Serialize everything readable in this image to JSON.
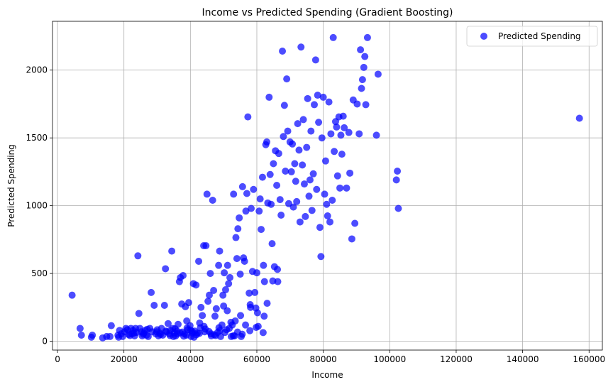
{
  "chart_data": {
    "type": "scatter",
    "title": "Income vs Predicted Spending (Gradient Boosting)",
    "xlabel": "Income",
    "ylabel": "Predicted Spending",
    "xlim": [
      -1500,
      164000
    ],
    "ylim": [
      -65,
      2360
    ],
    "xticks": [
      0,
      20000,
      40000,
      60000,
      80000,
      100000,
      120000,
      140000,
      160000
    ],
    "yticks": [
      0,
      500,
      1000,
      1500,
      2000
    ],
    "grid": true,
    "legend": {
      "placement": "top-right",
      "label": "Predicted Spending"
    },
    "marker_color": "#0000ff",
    "marker_alpha": 0.7,
    "series": [
      {
        "name": "Predicted Spending",
        "points": [
          [
            4400,
            340
          ],
          [
            6800,
            95
          ],
          [
            7200,
            45
          ],
          [
            10200,
            30
          ],
          [
            10500,
            45
          ],
          [
            13600,
            25
          ],
          [
            14800,
            35
          ],
          [
            15800,
            35
          ],
          [
            16200,
            115
          ],
          [
            18200,
            45
          ],
          [
            18400,
            30
          ],
          [
            18700,
            80
          ],
          [
            19200,
            55
          ],
          [
            19600,
            35
          ],
          [
            20200,
            70
          ],
          [
            20600,
            95
          ],
          [
            21000,
            85
          ],
          [
            21400,
            50
          ],
          [
            22100,
            95
          ],
          [
            22400,
            55
          ],
          [
            22800,
            80
          ],
          [
            23200,
            40
          ],
          [
            23500,
            95
          ],
          [
            23800,
            65
          ],
          [
            24200,
            630
          ],
          [
            24500,
            205
          ],
          [
            24800,
            95
          ],
          [
            25200,
            70
          ],
          [
            25500,
            40
          ],
          [
            26000,
            60
          ],
          [
            26400,
            80
          ],
          [
            26800,
            45
          ],
          [
            27300,
            35
          ],
          [
            27800,
            95
          ],
          [
            28200,
            360
          ],
          [
            28500,
            70
          ],
          [
            29100,
            265
          ],
          [
            29600,
            55
          ],
          [
            30000,
            85
          ],
          [
            30400,
            40
          ],
          [
            30800,
            60
          ],
          [
            31300,
            95
          ],
          [
            31700,
            45
          ],
          [
            32200,
            265
          ],
          [
            32500,
            535
          ],
          [
            32800,
            70
          ],
          [
            33300,
            130
          ],
          [
            33700,
            55
          ],
          [
            34000,
            80
          ],
          [
            34400,
            665
          ],
          [
            34700,
            95
          ],
          [
            35200,
            60
          ],
          [
            35600,
            40
          ],
          [
            36000,
            75
          ],
          [
            36300,
            125
          ],
          [
            36700,
            440
          ],
          [
            37000,
            470
          ],
          [
            37400,
            275
          ],
          [
            37800,
            485
          ],
          [
            38200,
            55
          ],
          [
            38500,
            255
          ],
          [
            38900,
            150
          ],
          [
            39200,
            85
          ],
          [
            39500,
            285
          ],
          [
            39900,
            115
          ],
          [
            40200,
            35
          ],
          [
            40600,
            60
          ],
          [
            40900,
            425
          ],
          [
            41300,
            75
          ],
          [
            41700,
            415
          ],
          [
            42100,
            60
          ],
          [
            42500,
            590
          ],
          [
            42800,
            135
          ],
          [
            43200,
            250
          ],
          [
            43600,
            190
          ],
          [
            44000,
            705
          ],
          [
            44300,
            70
          ],
          [
            44700,
            705
          ],
          [
            45000,
            1085
          ],
          [
            45300,
            295
          ],
          [
            45700,
            340
          ],
          [
            46000,
            500
          ],
          [
            46300,
            40
          ],
          [
            46700,
            1040
          ],
          [
            47000,
            375
          ],
          [
            47400,
            185
          ],
          [
            47800,
            240
          ],
          [
            48200,
            65
          ],
          [
            48500,
            560
          ],
          [
            48800,
            665
          ],
          [
            49100,
            35
          ],
          [
            49500,
            120
          ],
          [
            49800,
            340
          ],
          [
            50200,
            505
          ],
          [
            50600,
            380
          ],
          [
            50900,
            85
          ],
          [
            51200,
            560
          ],
          [
            51500,
            425
          ],
          [
            51900,
            470
          ],
          [
            52200,
            140
          ],
          [
            52600,
            120
          ],
          [
            53000,
            1085
          ],
          [
            53300,
            40
          ],
          [
            53700,
            765
          ],
          [
            54000,
            610
          ],
          [
            54300,
            830
          ],
          [
            54700,
            910
          ],
          [
            55000,
            495
          ],
          [
            55300,
            35
          ],
          [
            55700,
            1140
          ],
          [
            56000,
            615
          ],
          [
            56300,
            590
          ],
          [
            56700,
            960
          ],
          [
            57000,
            1090
          ],
          [
            57300,
            1655
          ],
          [
            57700,
            355
          ],
          [
            58000,
            270
          ],
          [
            58300,
            980
          ],
          [
            58700,
            515
          ],
          [
            59000,
            1120
          ],
          [
            59400,
            360
          ],
          [
            59700,
            245
          ],
          [
            60000,
            505
          ],
          [
            60400,
            110
          ],
          [
            60700,
            960
          ],
          [
            61000,
            1050
          ],
          [
            61300,
            825
          ],
          [
            61700,
            1210
          ],
          [
            62000,
            560
          ],
          [
            62300,
            440
          ],
          [
            62700,
            1450
          ],
          [
            63000,
            1470
          ],
          [
            63300,
            1020
          ],
          [
            63700,
            1800
          ],
          [
            64000,
            1230
          ],
          [
            64300,
            1010
          ],
          [
            64600,
            720
          ],
          [
            65000,
            1310
          ],
          [
            65300,
            550
          ],
          [
            65600,
            1405
          ],
          [
            66000,
            1150
          ],
          [
            66300,
            440
          ],
          [
            66600,
            1385
          ],
          [
            67000,
            1045
          ],
          [
            67300,
            930
          ],
          [
            67700,
            2140
          ],
          [
            68000,
            1510
          ],
          [
            68300,
            1740
          ],
          [
            68600,
            1255
          ],
          [
            69000,
            1935
          ],
          [
            69300,
            1550
          ],
          [
            69600,
            1015
          ],
          [
            70000,
            1470
          ],
          [
            70400,
            1250
          ],
          [
            70700,
            1455
          ],
          [
            71000,
            990
          ],
          [
            71400,
            1310
          ],
          [
            71700,
            1180
          ],
          [
            72000,
            1030
          ],
          [
            72300,
            1605
          ],
          [
            72700,
            1410
          ],
          [
            73000,
            880
          ],
          [
            73300,
            2170
          ],
          [
            73700,
            1300
          ],
          [
            74000,
            1635
          ],
          [
            74300,
            1160
          ],
          [
            74600,
            920
          ],
          [
            75000,
            1430
          ],
          [
            75300,
            1790
          ],
          [
            75700,
            1070
          ],
          [
            76000,
            1190
          ],
          [
            76300,
            1550
          ],
          [
            76600,
            965
          ],
          [
            77000,
            1235
          ],
          [
            77300,
            1745
          ],
          [
            77700,
            2075
          ],
          [
            78000,
            1120
          ],
          [
            78300,
            1815
          ],
          [
            78600,
            1615
          ],
          [
            79000,
            840
          ],
          [
            79300,
            625
          ],
          [
            79600,
            1500
          ],
          [
            80000,
            1800
          ],
          [
            80400,
            1085
          ],
          [
            80700,
            1330
          ],
          [
            81000,
            1010
          ],
          [
            81300,
            925
          ],
          [
            81700,
            1765
          ],
          [
            82000,
            880
          ],
          [
            82300,
            1530
          ],
          [
            82700,
            1040
          ],
          [
            83000,
            2240
          ],
          [
            83300,
            1400
          ],
          [
            83700,
            1620
          ],
          [
            84000,
            1580
          ],
          [
            84300,
            1220
          ],
          [
            84700,
            1655
          ],
          [
            85000,
            1130
          ],
          [
            85300,
            1520
          ],
          [
            85600,
            1380
          ],
          [
            86000,
            1660
          ],
          [
            86300,
            1575
          ],
          [
            87000,
            1130
          ],
          [
            87700,
            1540
          ],
          [
            88000,
            1240
          ],
          [
            88600,
            755
          ],
          [
            89000,
            1780
          ],
          [
            89500,
            870
          ],
          [
            90200,
            1750
          ],
          [
            90800,
            1530
          ],
          [
            91200,
            2150
          ],
          [
            91500,
            1865
          ],
          [
            91800,
            1930
          ],
          [
            92200,
            2020
          ],
          [
            92500,
            2100
          ],
          [
            92800,
            1745
          ],
          [
            93300,
            2240
          ],
          [
            96000,
            1520
          ],
          [
            96500,
            1970
          ],
          [
            102000,
            1190
          ],
          [
            102300,
            1255
          ],
          [
            102600,
            980
          ],
          [
            157100,
            1645
          ],
          [
            21800,
            42
          ],
          [
            23000,
            60
          ],
          [
            25800,
            52
          ],
          [
            27000,
            88
          ],
          [
            29800,
            70
          ],
          [
            31000,
            50
          ],
          [
            32600,
            75
          ],
          [
            33900,
            42
          ],
          [
            35400,
            92
          ],
          [
            36900,
            62
          ],
          [
            38000,
            38
          ],
          [
            39000,
            98
          ],
          [
            40500,
            72
          ],
          [
            41800,
            48
          ],
          [
            43000,
            100
          ],
          [
            44500,
            90
          ],
          [
            46200,
            55
          ],
          [
            47600,
            42
          ],
          [
            48900,
            80
          ],
          [
            50400,
            65
          ],
          [
            51700,
            95
          ],
          [
            52900,
            40
          ],
          [
            54200,
            68
          ],
          [
            55600,
            52
          ],
          [
            57900,
            78
          ],
          [
            59800,
            102
          ],
          [
            61900,
            64
          ],
          [
            63100,
            280
          ],
          [
            64800,
            445
          ],
          [
            66200,
            530
          ],
          [
            34900,
            35
          ],
          [
            36100,
            55
          ],
          [
            37600,
            68
          ],
          [
            38800,
            45
          ],
          [
            40100,
            82
          ],
          [
            41100,
            30
          ],
          [
            42700,
            58
          ],
          [
            44100,
            110
          ],
          [
            45600,
            72
          ],
          [
            47200,
            48
          ],
          [
            48600,
            100
          ],
          [
            50000,
            260
          ],
          [
            51100,
            225
          ],
          [
            52300,
            35
          ],
          [
            53500,
            150
          ],
          [
            55100,
            190
          ],
          [
            56600,
            120
          ],
          [
            58100,
            250
          ],
          [
            60200,
            210
          ],
          [
            62200,
            185
          ]
        ]
      }
    ]
  }
}
